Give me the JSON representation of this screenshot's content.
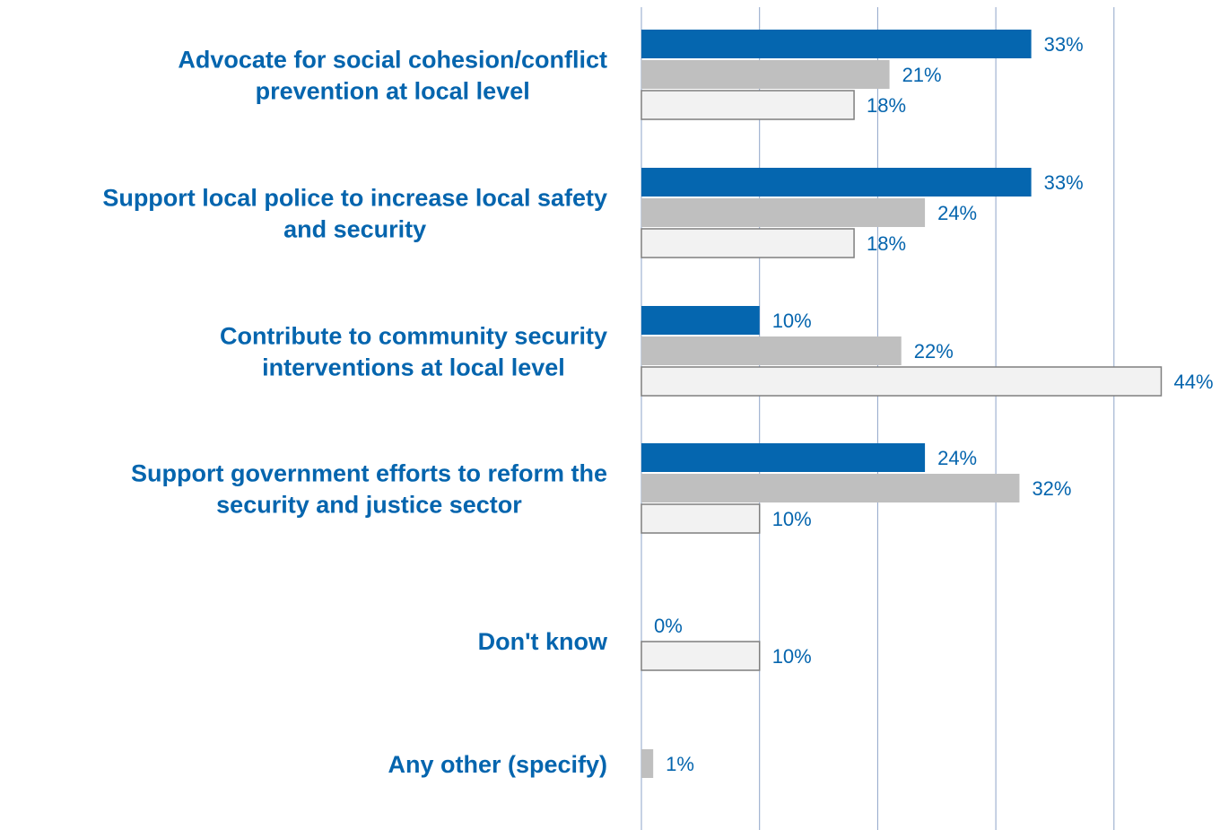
{
  "colors": {
    "series_1": "#0566AF",
    "series_2": "#BFBFBF",
    "series_3": "#F2F2F2",
    "series_3_border": "#7F7F7F",
    "gridline": "#8EA4C8",
    "label": "#0565AE"
  },
  "chart_data": {
    "type": "bar",
    "orientation": "horizontal",
    "xlim": [
      0,
      50
    ],
    "grid": true,
    "legend": "none",
    "categories": [
      {
        "lines": [
          "Advocate for social cohesion/conflict",
          "prevention at local level"
        ]
      },
      {
        "lines": [
          "Support local police to increase local safety",
          "and security"
        ]
      },
      {
        "lines": [
          "Contribute to community security",
          "interventions at local level"
        ]
      },
      {
        "lines": [
          "Support government efforts to reform the",
          "security and justice sector"
        ]
      },
      {
        "lines": [
          "Don't know"
        ]
      },
      {
        "lines": [
          "Any other (specify)"
        ]
      }
    ],
    "series": [
      {
        "values": [
          33,
          33,
          10,
          24,
          0,
          null
        ],
        "labels": [
          "33%",
          "33%",
          "10%",
          "24%",
          "0%",
          ""
        ]
      },
      {
        "values": [
          21,
          24,
          22,
          32,
          null,
          1
        ],
        "labels": [
          "21%",
          "24%",
          "22%",
          "32%",
          "",
          "1%"
        ]
      },
      {
        "values": [
          18,
          18,
          44,
          10,
          10,
          null
        ],
        "labels": [
          "18%",
          "18%",
          "44%",
          "10%",
          "10%",
          ""
        ]
      }
    ]
  }
}
